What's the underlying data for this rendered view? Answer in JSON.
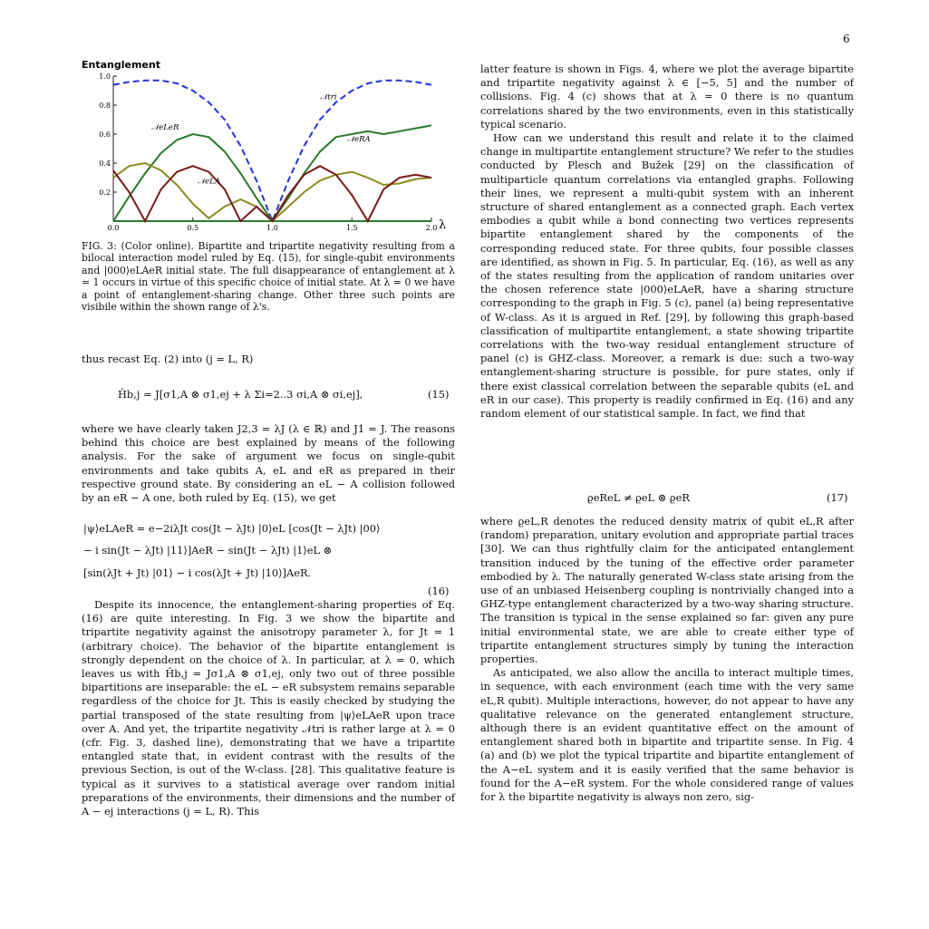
{
  "page": {
    "number": "6"
  },
  "figure": {
    "title": "Entanglement",
    "xaxis_label": "λ",
    "xticks": [
      "0.0",
      "0.5",
      "1.0",
      "1.5",
      "2.0"
    ],
    "yticks": [
      "0.2",
      "0.4",
      "0.6",
      "0.8",
      "1.0"
    ],
    "labels": {
      "ntri": "𝒩tri",
      "nelER": "𝒩eLeR",
      "neRA": "𝒩eRA",
      "neLA": "𝒩eLA"
    }
  },
  "chart_data": {
    "type": "line",
    "title": "Entanglement",
    "xlabel": "λ",
    "ylabel": "",
    "xlim": [
      0,
      2
    ],
    "ylim": [
      0,
      1
    ],
    "series": [
      {
        "name": "𝒩tri",
        "style": "dashed",
        "color": "#2233dd",
        "x": [
          0,
          0.1,
          0.2,
          0.3,
          0.4,
          0.5,
          0.6,
          0.7,
          0.8,
          0.9,
          1.0,
          1.1,
          1.2,
          1.3,
          1.4,
          1.5,
          1.6,
          1.7,
          1.8,
          1.9,
          2.0
        ],
        "y": [
          0.94,
          0.96,
          0.97,
          0.97,
          0.95,
          0.9,
          0.82,
          0.7,
          0.52,
          0.28,
          0.0,
          0.28,
          0.52,
          0.7,
          0.82,
          0.9,
          0.95,
          0.97,
          0.97,
          0.96,
          0.94
        ]
      },
      {
        "name": "𝒩eLeR",
        "color": "#2a7a2a",
        "x": [
          0,
          0.1,
          0.2,
          0.3,
          0.4,
          0.5,
          0.6,
          0.7,
          0.8,
          0.9,
          1.0,
          1.1,
          1.2,
          1.3,
          1.4,
          1.5,
          1.6,
          1.7,
          1.8,
          1.9,
          2.0
        ],
        "y": [
          0.0,
          0.17,
          0.33,
          0.47,
          0.56,
          0.6,
          0.58,
          0.48,
          0.33,
          0.16,
          0.0,
          0.0,
          0.0,
          0.0,
          0.0,
          0.0,
          0.0,
          0.0,
          0.0,
          0.0,
          0.0
        ]
      },
      {
        "name": "𝒩eRA",
        "color": "#2a7a2a",
        "x": [
          0,
          0.1,
          0.2,
          0.3,
          0.4,
          0.5,
          0.6,
          0.7,
          0.8,
          0.9,
          1.0,
          1.1,
          1.2,
          1.3,
          1.4,
          1.5,
          1.6,
          1.7,
          1.8,
          1.9,
          2.0
        ],
        "y": [
          0.0,
          0.0,
          0.0,
          0.0,
          0.0,
          0.0,
          0.0,
          0.0,
          0.0,
          0.0,
          0.0,
          0.16,
          0.33,
          0.48,
          0.58,
          0.6,
          0.62,
          0.6,
          0.62,
          0.64,
          0.66
        ]
      },
      {
        "name": "𝒩eLA",
        "color": "#8b8b1e",
        "x": [
          0,
          0.1,
          0.2,
          0.3,
          0.4,
          0.5,
          0.6,
          0.7,
          0.8,
          0.9,
          1.0,
          1.1,
          1.2,
          1.3,
          1.4,
          1.5,
          1.6,
          1.7,
          1.8,
          1.9,
          2.0
        ],
        "y": [
          0.3,
          0.38,
          0.4,
          0.35,
          0.25,
          0.12,
          0.02,
          0.1,
          0.15,
          0.1,
          0.0,
          0.1,
          0.2,
          0.28,
          0.32,
          0.34,
          0.3,
          0.25,
          0.26,
          0.29,
          0.3
        ]
      },
      {
        "name": "",
        "color": "#7a1a1a",
        "x": [
          0,
          0.1,
          0.2,
          0.3,
          0.4,
          0.5,
          0.6,
          0.7,
          0.8,
          0.9,
          1.0,
          1.1,
          1.2,
          1.3,
          1.4,
          1.5,
          1.6,
          1.7,
          1.8,
          1.9,
          2.0
        ],
        "y": [
          0.35,
          0.2,
          0.0,
          0.22,
          0.34,
          0.38,
          0.34,
          0.22,
          0.0,
          0.1,
          0.0,
          0.18,
          0.32,
          0.38,
          0.32,
          0.18,
          0.0,
          0.22,
          0.3,
          0.32,
          0.3
        ]
      }
    ]
  },
  "caption": "FIG. 3: (Color online). Bipartite and tripartite negativity resulting from a bilocal interaction model ruled by Eq. (15), for single-qubit environments and |000⟩eLAeR initial state. The full disappearance of entanglement at λ = 1 occurs in virtue of this specific choice of initial state. At λ = 0 we have a point of entanglement-sharing change. Other three such points are visibile within the shown range of λ's.",
  "left": {
    "p1": "thus recast Eq. (2) into (j = L, R)",
    "eq15": "Ĥb,j = J[σ1,A ⊗ σ1,ej + λ Σi=2..3 σi,A ⊗ σi,ej],",
    "eq15_num": "(15)",
    "p2": "where we have clearly taken J2,3 = λJ (λ ∈ ℝ) and J1 = J. The reasons behind this choice are best explained by means of the following analysis. For the sake of argument we focus on single-qubit environments and take qubits A, eL and eR as prepared in their respective ground state. By considering an eL − A collision followed by an eR − A one, both ruled by Eq. (15), we get",
    "eq16_l1": "|ψ⟩eLAeR = e−2iλJt cos(Jt − λJt) |0⟩eL [cos(Jt − λJt) |00⟩",
    "eq16_l2": "− i sin(Jt − λJt) |11⟩]AeR − sin(Jt − λJt) |1⟩eL ⊗",
    "eq16_l3": "[sin(λJt + Jt) |01⟩ − i cos(λJt + Jt) |10⟩]AeR.",
    "eq16_num": "(16)",
    "p3": "Despite its innocence, the entanglement-sharing properties of Eq. (16) are quite interesting. In Fig. 3 we show the bipartite and tripartite negativity against the anisotropy parameter λ, for Jt = 1 (arbitrary choice). The behavior of the bipartite entanglement is strongly dependent on the choice of λ. In particular, at λ = 0, which leaves us with Ĥb,j = Jσ1,A ⊗ σ1,ej, only two out of three possible bipartitions are inseparable: the eL − eR subsystem remains separable regardless of the choice for Jt. This is easily checked by studying the partial transposed of the state resulting from |ψ⟩eLAeR upon trace over A. And yet, the tripartite negativity 𝒩tri is rather large at λ = 0 (cfr. Fig. 3, dashed line), demonstrating that we have a tripartite entangled state that, in evident contrast with the results of the previous Section, is out of the W-class. [28]. This qualitative feature is typical as it survives to a statistical average over random initial preparations of the environments, their dimensions and the number of A − ej interactions (j = L, R). This"
  },
  "right": {
    "p1": "latter feature is shown in Figs. 4, where we plot the average bipartite and tripartite negativity against λ ∈ [−5, 5] and the number of collisions. Fig. 4 (c) shows that at λ = 0 there is no quantum correlations shared by the two environments, even in this statistically typical scenario.",
    "p2": "How can we understand this result and relate it to the claimed change in multipartite entanglement structure? We refer to the studies conducted by Plesch and Bužek [29] on the classification of multiparticle quantum correlations via entangled graphs. Following their lines, we represent a multi-qubit system with an inherent structure of shared entanglement as a connected graph. Each vertex embodies a qubit while a bond connecting two vertices represents bipartite entanglement shared by the components of the corresponding reduced state. For three qubits, four possible classes are identified, as shown in Fig. 5. In particular, Eq. (16), as well as any of the states resulting from the application of random unitaries over the chosen reference state |000⟩eLAeR, have a sharing structure corresponding to the graph in Fig. 5 (c), panel (a) being representative of W-class. As it is argued in Ref. [29], by following this graph-based classification of multipartite entanglement, a state showing tripartite correlations with the two-way residual entanglement structure of panel (c) is GHZ-class. Moreover, a remark is due: such a two-way entanglement-sharing structure is possible, for pure states, only if there exist classical correlation between the separable qubits (eL and eR in our case). This property is readily confirmed in Eq. (16) and any random element of our statistical sample. In fact, we find that",
    "eq17": "ϱeReL ≠ ϱeL ⊗ ϱeR",
    "eq17_num": "(17)",
    "p3": "where ϱeL,R denotes the reduced density matrix of qubit eL,R after (random) preparation, unitary evolution and appropriate partial traces [30]. We can thus rightfully claim for the anticipated entanglement transition induced by the tuning of the effective order parameter embodied by λ. The naturally generated W-class state arising from the use of an unbiased Heisenberg coupling is nontrivially changed into a GHZ-type entanglement characterized by a two-way sharing structure. The transition is typical in the sense explained so far: given any pure initial environmental state, we are able to create either type of tripartite entanglement structures simply by tuning the interaction properties.",
    "p4": "As anticipated, we also allow the ancilla to interact multiple times, in sequence, with each environment (each time with the very same eL,R qubit). Multiple interactions, however, do not appear to have any qualitative relevance on the generated entanglement structure, although there is an evident quantitative effect on the amount of entanglement shared both in bipartite and tripartite sense. In Fig. 4 (a) and (b) we plot the typical tripartite and bipartite entanglement of the A−eL system and it is easily verified that the same behavior is found for the A−eR system. For the whole considered range of values for λ the bipartite negativity is always non zero, sig-"
  }
}
